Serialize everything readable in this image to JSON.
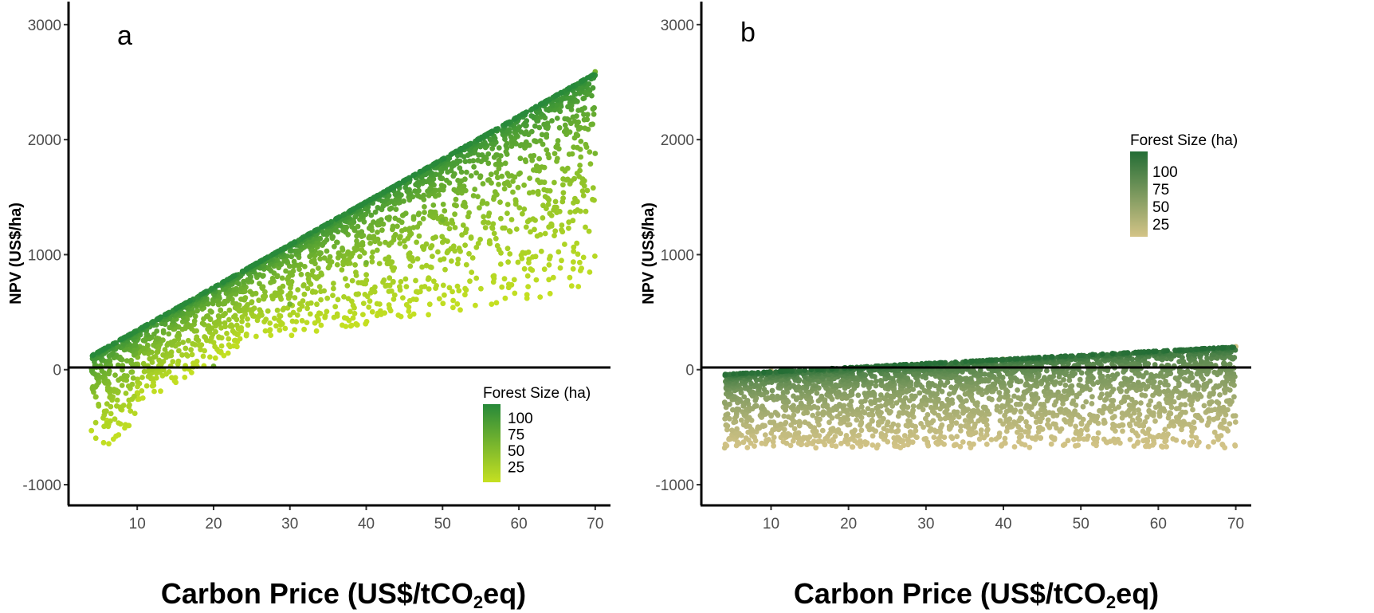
{
  "chart_data": [
    {
      "type": "scatter",
      "panel_label": "a",
      "xlabel": "Carbon Price (US$/tCO2eq)",
      "xlabel_main": "Carbon Price (US$/tCO",
      "xlabel_sub": "2",
      "xlabel_end": "eq)",
      "ylabel": "NPV (US$/ha)",
      "xlim": [
        1,
        72
      ],
      "ylim": [
        -1180,
        3200
      ],
      "x_ticks": [
        10,
        20,
        30,
        40,
        50,
        60,
        70
      ],
      "y_ticks": [
        -1000,
        0,
        1000,
        2000,
        3000
      ],
      "hline": 0,
      "legend": {
        "title": "Forest Size (ha)",
        "position": "bottom-right",
        "labels": [
          100,
          75,
          50,
          25
        ]
      },
      "color_scale": {
        "low": "#c5e021",
        "high": "#27893a"
      },
      "model": {
        "x_range": [
          4,
          70
        ],
        "envelope_intercept": 120,
        "envelope_slope": 37.2,
        "min_factor": 0.27,
        "max_gap": 650
      },
      "sample_points": [
        {
          "x": 4,
          "y": -530
        },
        {
          "x": 6,
          "y": -440
        },
        {
          "x": 8,
          "y": -350
        },
        {
          "x": 10,
          "y": -200
        },
        {
          "x": 15,
          "y": -70
        },
        {
          "x": 20,
          "y": 30
        },
        {
          "x": 30,
          "y": 570
        },
        {
          "x": 40,
          "y": 930
        },
        {
          "x": 50,
          "y": 1300
        },
        {
          "x": 60,
          "y": 1700
        },
        {
          "x": 70,
          "y": 1880
        },
        {
          "x": 70,
          "y": 2590
        }
      ]
    },
    {
      "type": "scatter",
      "panel_label": "b",
      "xlabel": "Carbon Price (US$/tCO2eq)",
      "xlabel_main": "Carbon Price (US$/tCO",
      "xlabel_sub": "2",
      "xlabel_end": "eq)",
      "ylabel": "NPV (US$/ha)",
      "xlim": [
        1,
        72
      ],
      "ylim": [
        -1180,
        3200
      ],
      "x_ticks": [
        10,
        20,
        30,
        40,
        50,
        60,
        70
      ],
      "y_ticks": [
        -1000,
        0,
        1000,
        2000,
        3000
      ],
      "hline": 0,
      "legend": {
        "title": "Forest Size (ha)",
        "position": "top-right",
        "labels": [
          100,
          75,
          50,
          25
        ]
      },
      "color_scale": {
        "low": "#d4c487",
        "high": "#236d35"
      },
      "model": {
        "x_range": [
          4,
          70
        ],
        "envelope_intercept": -40,
        "envelope_slope": 3.6,
        "min_value": -680
      },
      "sample_points": [
        {
          "x": 4,
          "y": -680
        },
        {
          "x": 12,
          "y": -640
        },
        {
          "x": 30,
          "y": -600
        },
        {
          "x": 50,
          "y": -560
        },
        {
          "x": 68,
          "y": -500
        },
        {
          "x": 70,
          "y": 200
        },
        {
          "x": 40,
          "y": 90
        },
        {
          "x": 10,
          "y": -10
        }
      ]
    }
  ]
}
